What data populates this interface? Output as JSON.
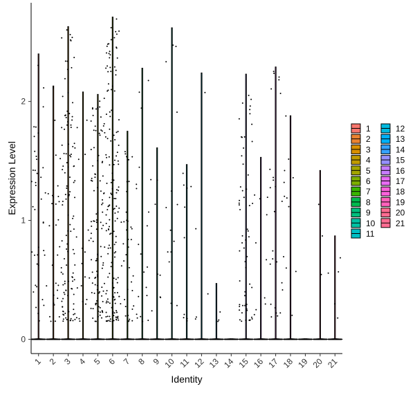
{
  "chart_data": {
    "type": "violin",
    "xlabel": "Identity",
    "ylabel": "Expression Level",
    "categories": [
      "1",
      "2",
      "3",
      "4",
      "5",
      "6",
      "7",
      "8",
      "9",
      "10",
      "11",
      "12",
      "13",
      "14",
      "15",
      "16",
      "17",
      "18",
      "19",
      "20",
      "21"
    ],
    "y_ticks": [
      0,
      1,
      2
    ],
    "ylim": [
      -0.12,
      2.83
    ],
    "grid": false,
    "legend_position": "right",
    "legend_columns": [
      [
        "1",
        "2",
        "3",
        "4",
        "5",
        "6",
        "7",
        "8",
        "9",
        "10",
        "11"
      ],
      [
        "12",
        "13",
        "14",
        "15",
        "16",
        "17",
        "18",
        "19",
        "20",
        "21"
      ]
    ],
    "colors": {
      "1": "#F8766D",
      "2": "#EA8331",
      "3": "#D89000",
      "4": "#C09B00",
      "5": "#A3A500",
      "6": "#7CAE00",
      "7": "#39B600",
      "8": "#00BB4E",
      "9": "#00BF7D",
      "10": "#00C1A3",
      "11": "#00BFC4",
      "12": "#00BAE0",
      "13": "#00B0F6",
      "14": "#35A2FF",
      "15": "#9590FF",
      "16": "#C77CFF",
      "17": "#E76BF3",
      "18": "#FA62DB",
      "19": "#FF62BC",
      "20": "#FF6C91",
      "21": "#FF6C91"
    },
    "series": [
      {
        "category": "1",
        "max": 2.4,
        "expressing_points": 40
      },
      {
        "category": "2",
        "max": 2.13,
        "expressing_points": 30
      },
      {
        "category": "3",
        "max": 2.63,
        "expressing_points": 120
      },
      {
        "category": "4",
        "max": 2.08,
        "expressing_points": 20
      },
      {
        "category": "5",
        "max": 2.06,
        "expressing_points": 110
      },
      {
        "category": "6",
        "max": 2.71,
        "expressing_points": 160
      },
      {
        "category": "7",
        "max": 1.75,
        "expressing_points": 40
      },
      {
        "category": "8",
        "max": 2.28,
        "expressing_points": 20
      },
      {
        "category": "9",
        "max": 1.61,
        "expressing_points": 8
      },
      {
        "category": "10",
        "max": 2.62,
        "expressing_points": 14
      },
      {
        "category": "11",
        "max": 1.47,
        "expressing_points": 10
      },
      {
        "category": "12",
        "max": 2.24,
        "expressing_points": 5
      },
      {
        "category": "13",
        "max": 0.47,
        "expressing_points": 3
      },
      {
        "category": "14",
        "max": 0.0,
        "expressing_points": 0
      },
      {
        "category": "15",
        "max": 2.23,
        "expressing_points": 60
      },
      {
        "category": "16",
        "max": 1.53,
        "expressing_points": 10
      },
      {
        "category": "17",
        "max": 2.29,
        "expressing_points": 25
      },
      {
        "category": "18",
        "max": 1.88,
        "expressing_points": 12
      },
      {
        "category": "19",
        "max": 0.0,
        "expressing_points": 0
      },
      {
        "category": "20",
        "max": 1.42,
        "expressing_points": 3
      },
      {
        "category": "21",
        "max": 0.87,
        "expressing_points": 5
      }
    ]
  }
}
